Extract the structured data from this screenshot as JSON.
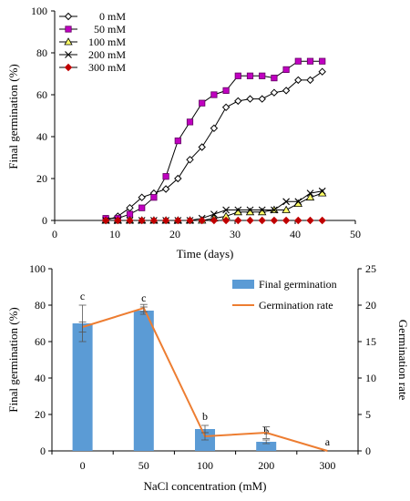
{
  "chart_data": [
    {
      "type": "line",
      "xlabel": "Time (days)",
      "ylabel": "Final germination (%)",
      "xlim": [
        0,
        50
      ],
      "ylim": [
        0,
        100
      ],
      "xticks": [
        0,
        10,
        20,
        30,
        40,
        50
      ],
      "yticks": [
        0,
        20,
        40,
        60,
        80,
        100
      ],
      "legend_position": "top-left",
      "series": [
        {
          "name": "0 mM",
          "color": "#000000",
          "marker": "diamond-open",
          "x": [
            8.5,
            10.5,
            12.5,
            14.5,
            16.5,
            18.5,
            20.5,
            22.5,
            24.5,
            26.5,
            28.5,
            30.5,
            32.5,
            34.5,
            36.5,
            38.5,
            40.5,
            42.5,
            44.5
          ],
          "y": [
            0,
            2,
            6,
            11,
            13,
            15,
            20,
            29,
            35,
            44,
            54,
            57,
            58,
            58,
            61,
            62,
            67,
            67,
            71
          ]
        },
        {
          "name": "50 mM",
          "color": "#c000c0",
          "marker": "square",
          "x": [
            8.5,
            10.5,
            12.5,
            14.5,
            16.5,
            18.5,
            20.5,
            22.5,
            24.5,
            26.5,
            28.5,
            30.5,
            32.5,
            34.5,
            36.5,
            38.5,
            40.5,
            42.5,
            44.5
          ],
          "y": [
            1,
            1,
            3,
            6,
            11,
            21,
            38,
            47,
            56,
            60,
            62,
            69,
            69,
            69,
            68,
            72,
            76,
            76,
            76
          ]
        },
        {
          "name": "100 mM",
          "color": "#a0a000",
          "marker": "triangle",
          "x": [
            8.5,
            10.5,
            12.5,
            14.5,
            16.5,
            18.5,
            20.5,
            22.5,
            24.5,
            26.5,
            28.5,
            30.5,
            32.5,
            34.5,
            36.5,
            38.5,
            40.5,
            42.5,
            44.5
          ],
          "y": [
            0,
            0,
            0,
            0,
            0,
            0,
            0,
            0,
            0,
            1,
            2,
            4,
            4,
            4,
            5,
            5,
            8,
            11,
            13
          ]
        },
        {
          "name": "200 mM",
          "color": "#000000",
          "marker": "cross",
          "x": [
            8.5,
            10.5,
            12.5,
            14.5,
            16.5,
            18.5,
            20.5,
            22.5,
            24.5,
            26.5,
            28.5,
            30.5,
            32.5,
            34.5,
            36.5,
            38.5,
            40.5,
            42.5,
            44.5
          ],
          "y": [
            0,
            0,
            0,
            0,
            0,
            0,
            0,
            0,
            1,
            3,
            5,
            5,
            5,
            5,
            5,
            9,
            9,
            13,
            14
          ]
        },
        {
          "name": "300 mM",
          "color": "#c00000",
          "marker": "diamond",
          "x": [
            8.5,
            10.5,
            12.5,
            14.5,
            16.5,
            18.5,
            20.5,
            22.5,
            24.5,
            26.5,
            28.5,
            30.5,
            32.5,
            34.5,
            36.5,
            38.5,
            40.5,
            42.5,
            44.5
          ],
          "y": [
            0,
            0,
            0,
            0,
            0,
            0,
            0,
            0,
            0,
            0,
            0,
            0,
            0,
            0,
            0,
            0,
            0,
            0,
            0
          ]
        }
      ]
    },
    {
      "type": "bar",
      "xlabel": "NaCl concentration (mM)",
      "ylabel": "Final germination (%)",
      "y2label": "Germination rate",
      "categories": [
        "0",
        "50",
        "100",
        "200",
        "300"
      ],
      "ylim": [
        0,
        100
      ],
      "yticks": [
        0,
        20,
        40,
        60,
        80,
        100
      ],
      "y2lim": [
        0,
        25
      ],
      "y2ticks": [
        0,
        5,
        10,
        15,
        20,
        25
      ],
      "legend_position": "top-right",
      "series": [
        {
          "name": "Final germination",
          "kind": "bar",
          "axis": "left",
          "color": "#5b9bd5",
          "values": [
            70,
            77,
            12,
            5,
            0
          ],
          "errors": [
            10,
            2,
            2,
            1,
            0
          ],
          "letters": [
            "c",
            "c",
            "b",
            "b",
            "a"
          ]
        },
        {
          "name": "Germination rate",
          "kind": "line",
          "axis": "right",
          "color": "#ed7d31",
          "values": [
            17,
            19.6,
            2,
            2.5,
            0
          ],
          "errors": [
            0.7,
            0.5,
            0.5,
            0.8,
            0
          ]
        }
      ]
    }
  ]
}
